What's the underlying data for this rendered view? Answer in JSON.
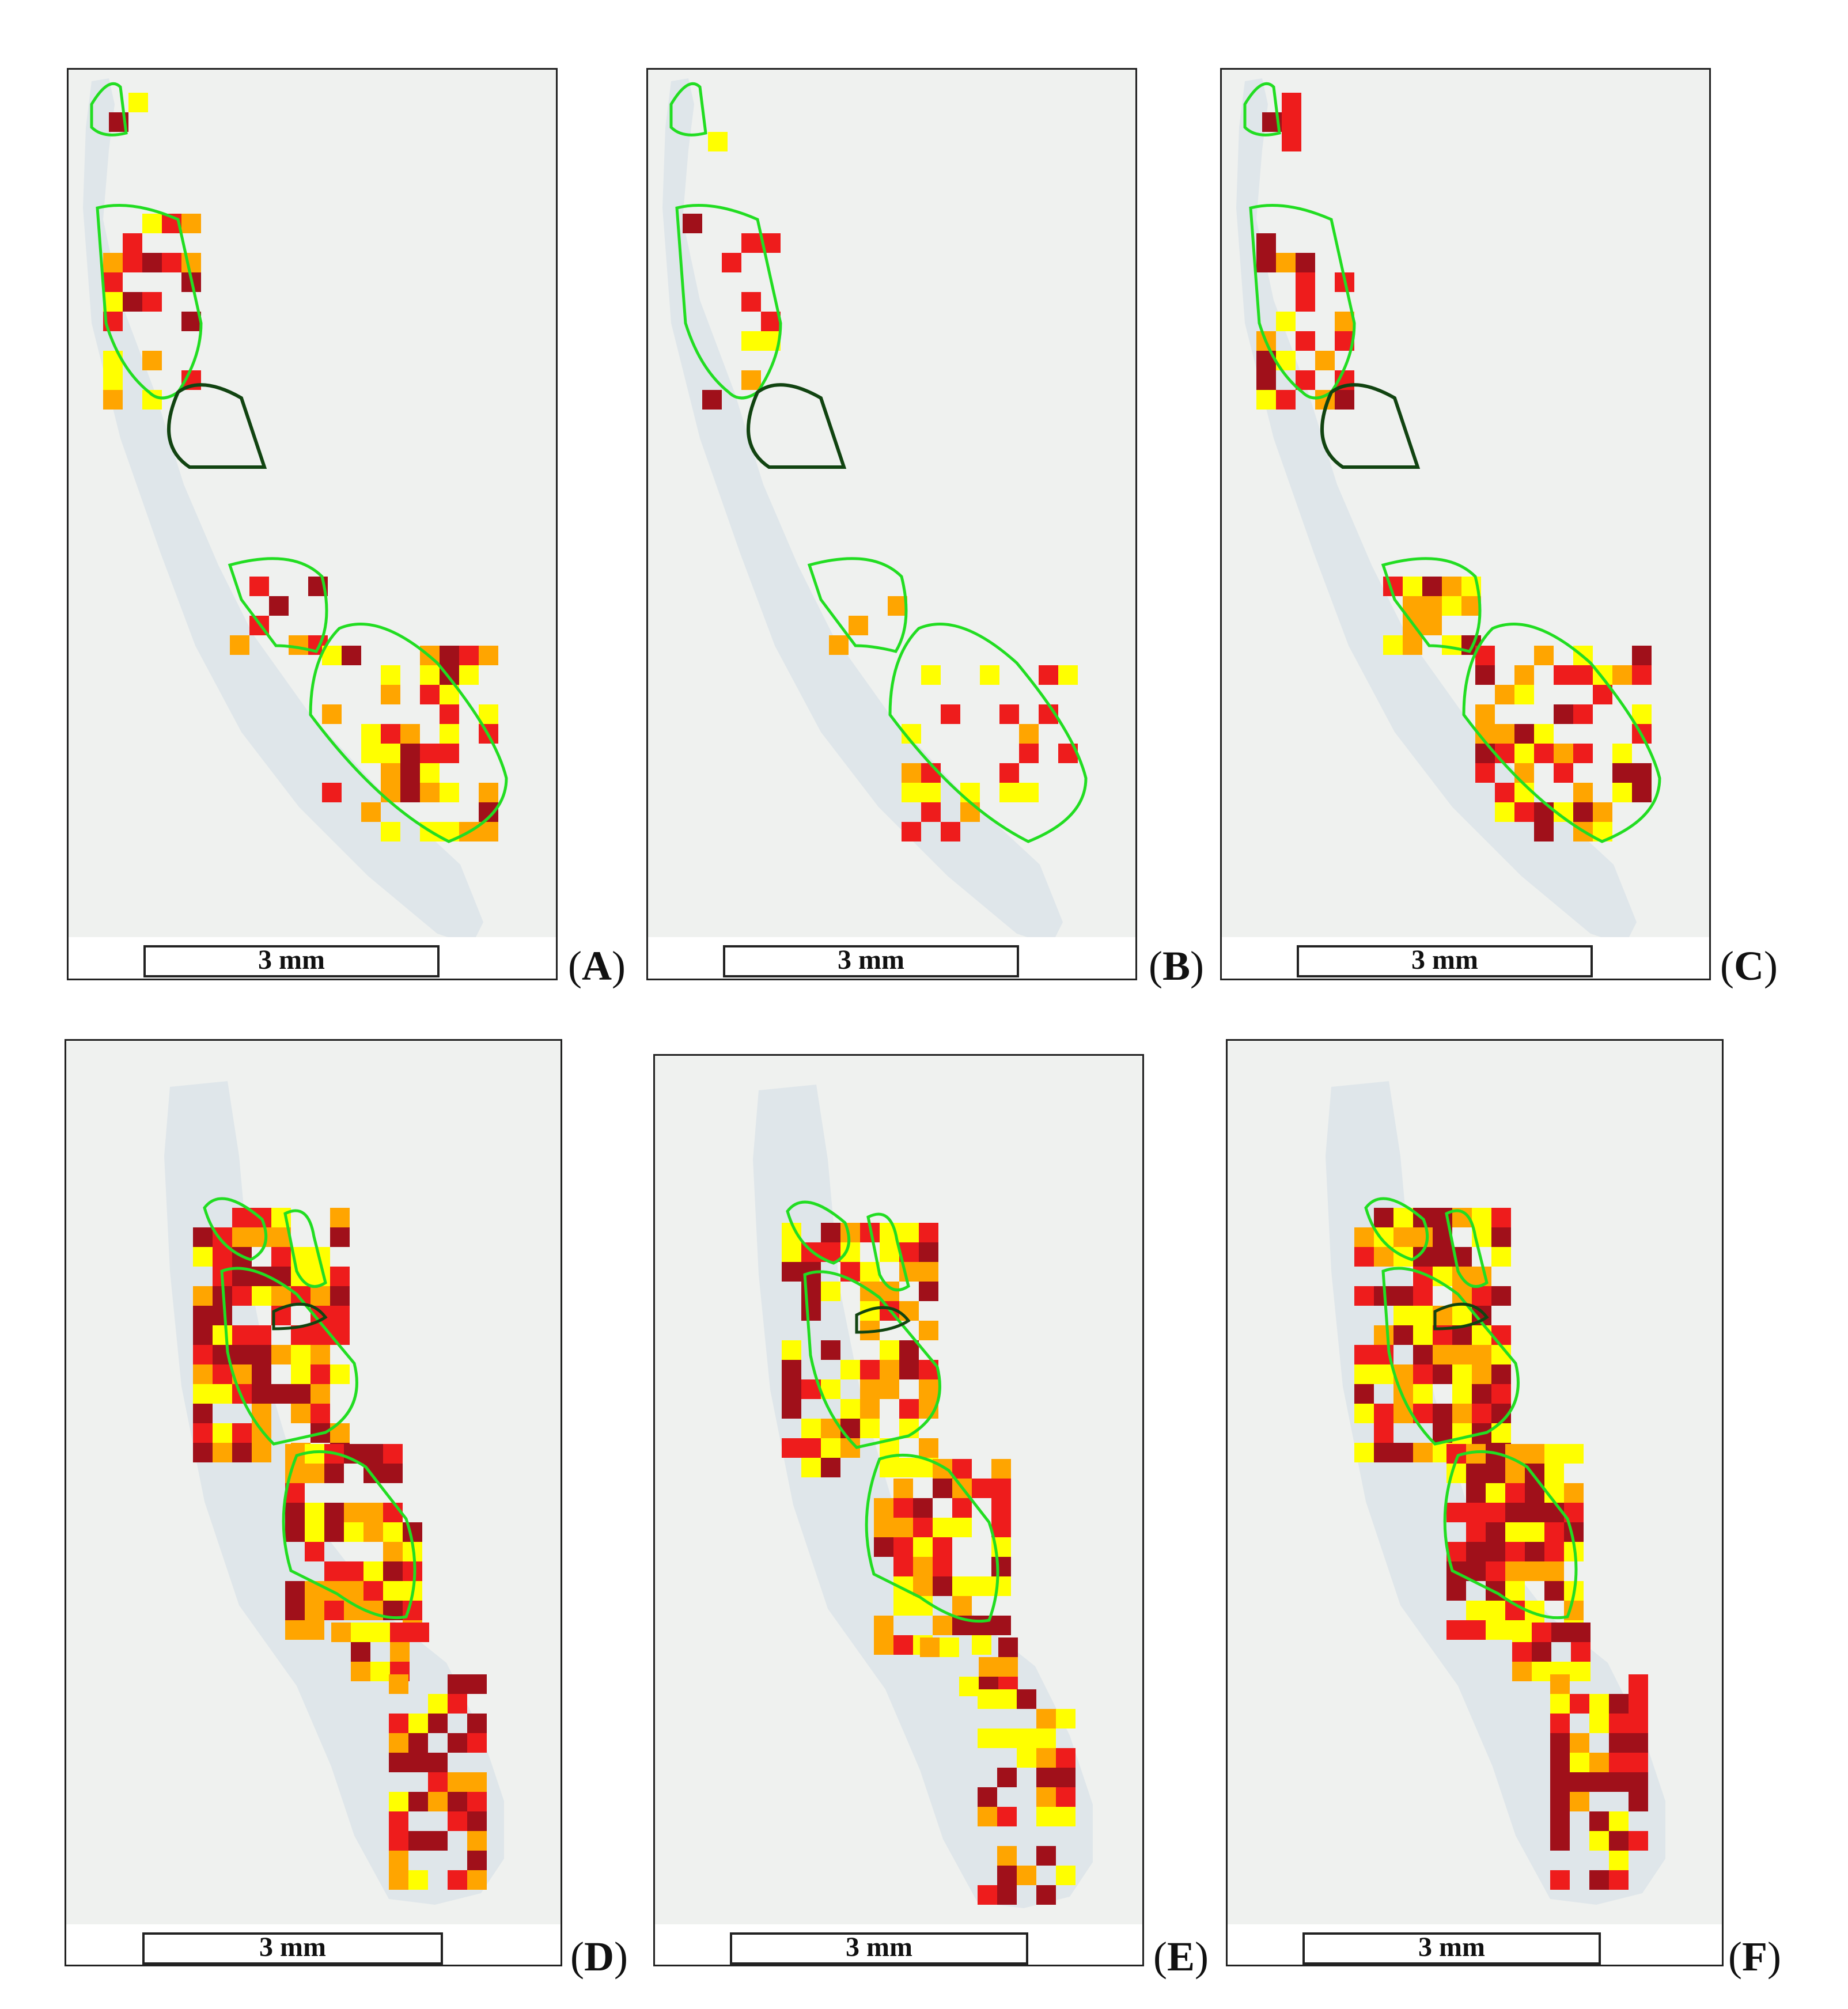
{
  "figure": {
    "scale_bar_text": "3 mm",
    "panels": [
      {
        "id": "A",
        "label_open": "(",
        "label_letter": "A",
        "label_close": ")"
      },
      {
        "id": "B",
        "label_open": "(",
        "label_letter": "B",
        "label_close": ")"
      },
      {
        "id": "C",
        "label_open": "(",
        "label_letter": "C",
        "label_close": ")"
      },
      {
        "id": "D",
        "label_open": "(",
        "label_letter": "D",
        "label_close": ")"
      },
      {
        "id": "E",
        "label_open": "(",
        "label_letter": "E",
        "label_close": ")"
      },
      {
        "id": "F",
        "label_open": "(",
        "label_letter": "F",
        "label_close": ")"
      }
    ],
    "colors": {
      "background": "#eff1ef",
      "tissue": "#dfe6ea",
      "annotation_outline": "#22dd22",
      "dark_outline": "#114411",
      "heat_low": "#ffff00",
      "heat_mid": "#ffa500",
      "heat_high": "#ee1c1c",
      "heat_max": "#a0101a"
    }
  }
}
